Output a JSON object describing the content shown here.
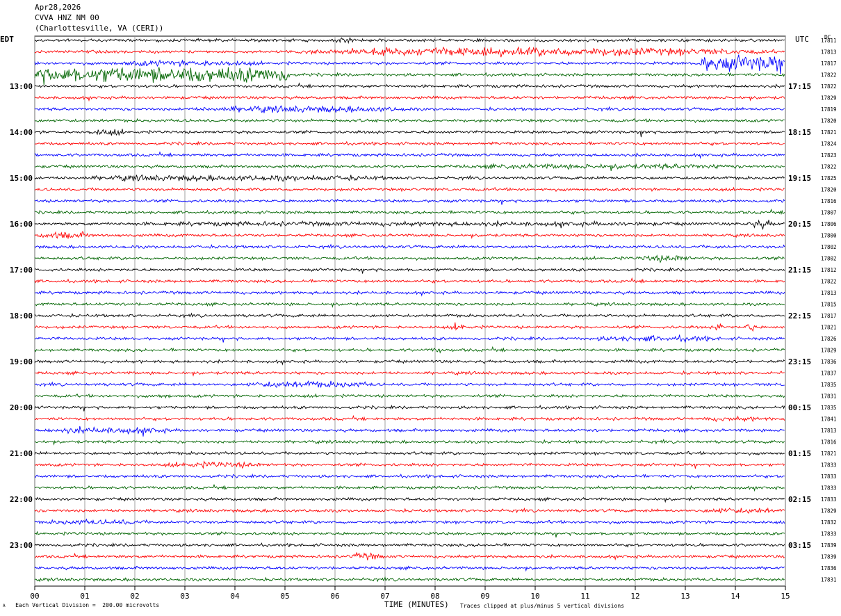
{
  "header": {
    "date": "Apr28,2026",
    "station": "CVVA HNZ NM 00",
    "location": "(Charlottesville, VA (CERI))"
  },
  "axes": {
    "left_label": "EDT",
    "right_label": "UTC",
    "right_corner": "DC",
    "xlabel": "TIME (MINUTES)"
  },
  "footer": {
    "scale_note": "Each Vertical Division =  200.00 microvolts",
    "clip_note": "Traces clipped at plus/minus 5 vertical divisions",
    "corner_mark": "A"
  },
  "chart_data": {
    "type": "line",
    "title": "CVVA HNZ NM 00",
    "xlabel": "TIME (MINUTES)",
    "xlim": [
      0,
      15
    ],
    "x_ticks": [
      "00",
      "01",
      "02",
      "03",
      "04",
      "05",
      "06",
      "07",
      "08",
      "09",
      "10",
      "11",
      "12",
      "13",
      "14",
      "15"
    ],
    "trace_colors": [
      "#000000",
      "#ff0000",
      "#0000ff",
      "#006400"
    ],
    "left_hour_labels": [
      "13:00",
      "14:00",
      "15:00",
      "16:00",
      "17:00",
      "18:00",
      "19:00",
      "20:00",
      "21:00",
      "22:00",
      "23:00"
    ],
    "right_hour_labels": [
      "17:15",
      "18:15",
      "19:15",
      "20:15",
      "21:15",
      "22:15",
      "23:15",
      "00:15",
      "01:15",
      "02:15",
      "03:15"
    ],
    "hour_label_first_row": 4,
    "rows_per_hour": 4,
    "dc_offsets": [
      "17811",
      "17813",
      "17817",
      "17822",
      "17822",
      "17829",
      "17819",
      "17820",
      "17821",
      "17824",
      "17823",
      "17822",
      "17825",
      "17820",
      "17816",
      "17807",
      "17806",
      "17800",
      "17802",
      "17802",
      "17812",
      "17822",
      "17813",
      "17815",
      "17817",
      "17821",
      "17826",
      "17829",
      "17836",
      "17837",
      "17835",
      "17831",
      "17835",
      "17841",
      "17813",
      "17816",
      "17821",
      "17833",
      "17833",
      "17833",
      "17833",
      "17829",
      "17832",
      "17833",
      "17839",
      "17839",
      "17836",
      "17831"
    ],
    "events": [
      {
        "row": 0,
        "start": 6.0,
        "end": 6.4,
        "amp": 2.2
      },
      {
        "row": 1,
        "start": 4.9,
        "end": 15.0,
        "amp": 2.6
      },
      {
        "row": 2,
        "start": 13.3,
        "end": 15.0,
        "amp": 5.0,
        "clipped": true
      },
      {
        "row": 2,
        "start": 1.2,
        "end": 4.8,
        "amp": 1.8
      },
      {
        "row": 3,
        "start": 0.0,
        "end": 5.1,
        "amp": 5.0,
        "clipped": true
      },
      {
        "row": 6,
        "start": 2.8,
        "end": 7.9,
        "amp": 2.0
      },
      {
        "row": 8,
        "start": 1.0,
        "end": 1.9,
        "amp": 2.0
      },
      {
        "row": 8,
        "start": 12.1,
        "end": 12.3,
        "amp": 2.0
      },
      {
        "row": 11,
        "start": 7.8,
        "end": 15.0,
        "amp": 1.6
      },
      {
        "row": 12,
        "start": 0.0,
        "end": 7.8,
        "amp": 1.8
      },
      {
        "row": 16,
        "start": 0.0,
        "end": 15.0,
        "amp": 1.4
      },
      {
        "row": 16,
        "start": 14.2,
        "end": 14.8,
        "amp": 2.6
      },
      {
        "row": 17,
        "start": 0.0,
        "end": 1.2,
        "amp": 2.2
      },
      {
        "row": 19,
        "start": 12.0,
        "end": 13.2,
        "amp": 2.2
      },
      {
        "row": 25,
        "start": 8.3,
        "end": 8.7,
        "amp": 2.4
      },
      {
        "row": 25,
        "start": 13.6,
        "end": 13.8,
        "amp": 3.5
      },
      {
        "row": 25,
        "start": 14.2,
        "end": 14.4,
        "amp": 3.5
      },
      {
        "row": 26,
        "start": 10.9,
        "end": 13.9,
        "amp": 1.8
      },
      {
        "row": 27,
        "start": 7.9,
        "end": 8.2,
        "amp": 1.8
      },
      {
        "row": 30,
        "start": 4.0,
        "end": 7.0,
        "amp": 2.0
      },
      {
        "row": 31,
        "start": 2.4,
        "end": 2.8,
        "amp": 1.6
      },
      {
        "row": 33,
        "start": 13.0,
        "end": 15.0,
        "amp": 1.4
      },
      {
        "row": 34,
        "start": 0.0,
        "end": 3.0,
        "amp": 2.0
      },
      {
        "row": 37,
        "start": 2.4,
        "end": 4.8,
        "amp": 1.8
      },
      {
        "row": 41,
        "start": 13.2,
        "end": 15.0,
        "amp": 1.8
      },
      {
        "row": 42,
        "start": 0.0,
        "end": 2.5,
        "amp": 1.6
      },
      {
        "row": 45,
        "start": 6.2,
        "end": 7.0,
        "amp": 2.2
      }
    ]
  }
}
